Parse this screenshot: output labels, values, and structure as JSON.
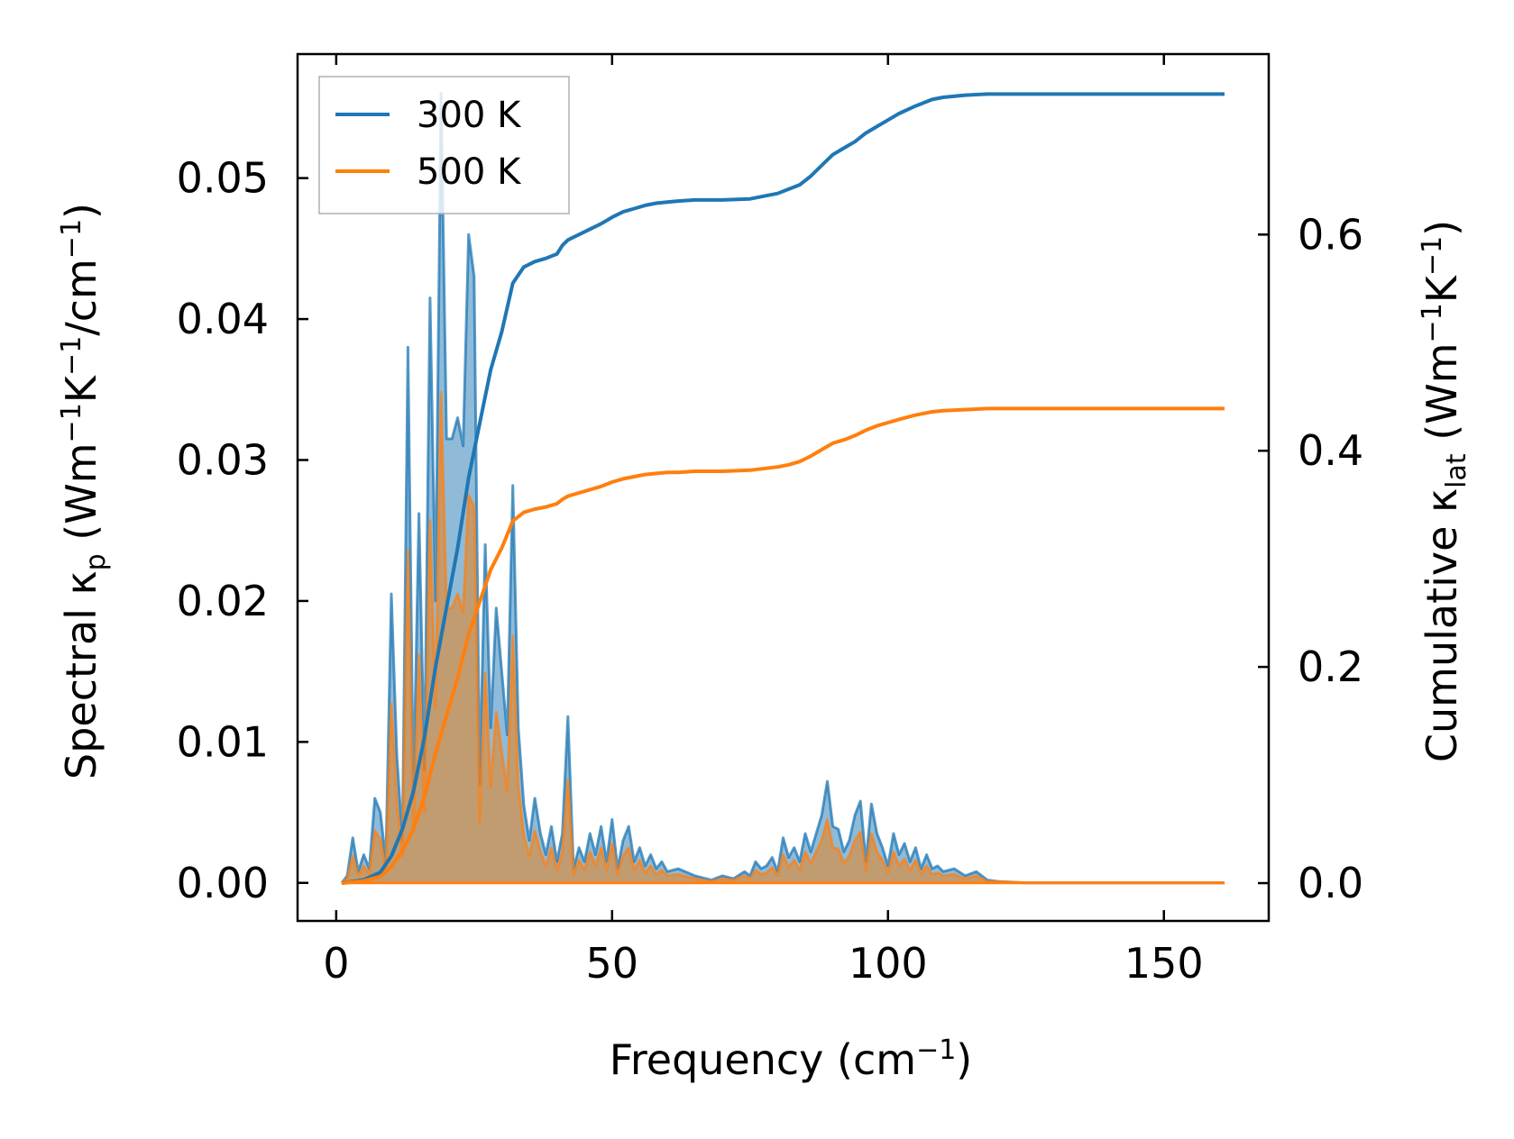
{
  "chart_data": {
    "type": "line",
    "xlabel": "Frequency (cm",
    "xlabel_sup": "−1",
    "xlabel_end": ")",
    "ylabel_left": {
      "parts": [
        {
          "t": "Spectral κ",
          "s": "n"
        },
        {
          "t": "p",
          "s": "sub"
        },
        {
          "t": " (Wm",
          "s": "n"
        },
        {
          "t": "−1",
          "s": "sup"
        },
        {
          "t": "K",
          "s": "n"
        },
        {
          "t": "−1",
          "s": "sup"
        },
        {
          "t": "/cm",
          "s": "n"
        },
        {
          "t": "−1",
          "s": "sup"
        },
        {
          "t": ")",
          "s": "n"
        }
      ]
    },
    "ylabel_right": {
      "parts": [
        {
          "t": "Cumulative κ",
          "s": "n"
        },
        {
          "t": "lat",
          "s": "sub"
        },
        {
          "t": " (Wm",
          "s": "n"
        },
        {
          "t": "−1",
          "s": "sup"
        },
        {
          "t": "K",
          "s": "n"
        },
        {
          "t": "−1",
          "s": "sup"
        },
        {
          "t": ")",
          "s": "n"
        }
      ]
    },
    "xlim": [
      -7,
      169
    ],
    "ylim_left": [
      -0.0027,
      0.0588
    ],
    "ylim_right": [
      -0.035,
      0.767
    ],
    "xticks": [
      0,
      50,
      100,
      150
    ],
    "xtick_labels": [
      "0",
      "50",
      "100",
      "150"
    ],
    "yticks_left": [
      0,
      0.01,
      0.02,
      0.03,
      0.04,
      0.05
    ],
    "ytick_labels_left": [
      "0.00",
      "0.01",
      "0.02",
      "0.03",
      "0.04",
      "0.05"
    ],
    "yticks_right": [
      0,
      0.2,
      0.4,
      0.6
    ],
    "ytick_labels_right": [
      "0.0",
      "0.2",
      "0.4",
      "0.6"
    ],
    "legend_position": "top-left",
    "colors": {
      "s300": "#1f77b4",
      "s500": "#ff7f0e",
      "fill500": "#c49a6c"
    },
    "series": [
      {
        "name": "300 K",
        "spectral_x": [
          1,
          2,
          3,
          4,
          5,
          6,
          7,
          8,
          9,
          10,
          11,
          12,
          13,
          14,
          15,
          16,
          17,
          18,
          19,
          20,
          21,
          22,
          23,
          24,
          25,
          26,
          27,
          28,
          29,
          30,
          31,
          32,
          33,
          34,
          35,
          36,
          37,
          38,
          39,
          40,
          41,
          42,
          43,
          44,
          45,
          46,
          47,
          48,
          49,
          50,
          51,
          52,
          53,
          54,
          55,
          56,
          57,
          58,
          59,
          60,
          62,
          65,
          68,
          70,
          72,
          74,
          75,
          76,
          77,
          78,
          79,
          80,
          81,
          82,
          83,
          84,
          85,
          86,
          87,
          88,
          89,
          90,
          91,
          92,
          93,
          94,
          95,
          96,
          97,
          98,
          99,
          100,
          101,
          102,
          103,
          104,
          105,
          106,
          107,
          108,
          109,
          110,
          112,
          114,
          116,
          118,
          120,
          125,
          130,
          140,
          150,
          161
        ],
        "spectral_y": [
          0.0,
          0.0005,
          0.0032,
          0.0008,
          0.002,
          0.001,
          0.006,
          0.005,
          0.0015,
          0.0205,
          0.009,
          0.003,
          0.038,
          0.006,
          0.0262,
          0.008,
          0.0415,
          0.02,
          0.056,
          0.0315,
          0.0315,
          0.033,
          0.031,
          0.046,
          0.043,
          0.007,
          0.024,
          0.011,
          0.0195,
          0.015,
          0.0105,
          0.0282,
          0.011,
          0.0055,
          0.003,
          0.006,
          0.0035,
          0.002,
          0.004,
          0.0015,
          0.0035,
          0.0118,
          0.001,
          0.0025,
          0.0015,
          0.0035,
          0.002,
          0.004,
          0.0015,
          0.0045,
          0.001,
          0.003,
          0.004,
          0.0015,
          0.0025,
          0.0012,
          0.002,
          0.001,
          0.0015,
          0.0008,
          0.001,
          0.0005,
          0.0002,
          0.0005,
          0.0003,
          0.0008,
          0.0005,
          0.0015,
          0.001,
          0.0012,
          0.0018,
          0.0008,
          0.0032,
          0.0018,
          0.0025,
          0.0015,
          0.0035,
          0.0022,
          0.0035,
          0.0048,
          0.0072,
          0.004,
          0.0038,
          0.0022,
          0.003,
          0.0048,
          0.0058,
          0.0015,
          0.0056,
          0.0035,
          0.0025,
          0.0012,
          0.0035,
          0.002,
          0.0028,
          0.0015,
          0.0025,
          0.001,
          0.002,
          0.001,
          0.0012,
          0.0008,
          0.001,
          0.0005,
          0.0008,
          0.0002,
          0.0001,
          0.0,
          0.0,
          0.0,
          0.0,
          0.0
        ],
        "cumulative_x": [
          1,
          5,
          8,
          10,
          12,
          14,
          16,
          18,
          20,
          22,
          24,
          26,
          28,
          30,
          32,
          34,
          36,
          38,
          40,
          41,
          42,
          44,
          46,
          48,
          50,
          52,
          54,
          56,
          58,
          60,
          62,
          65,
          70,
          75,
          80,
          82,
          84,
          86,
          88,
          90,
          92,
          94,
          96,
          98,
          100,
          102,
          105,
          108,
          110,
          114,
          118,
          125,
          140,
          161
        ],
        "cumulative_y": [
          0.0,
          0.003,
          0.01,
          0.025,
          0.05,
          0.085,
          0.135,
          0.2,
          0.255,
          0.31,
          0.375,
          0.425,
          0.475,
          0.51,
          0.555,
          0.57,
          0.575,
          0.578,
          0.582,
          0.59,
          0.595,
          0.6,
          0.605,
          0.61,
          0.616,
          0.621,
          0.624,
          0.627,
          0.629,
          0.63,
          0.631,
          0.632,
          0.632,
          0.633,
          0.638,
          0.642,
          0.646,
          0.654,
          0.664,
          0.674,
          0.68,
          0.686,
          0.694,
          0.7,
          0.706,
          0.712,
          0.719,
          0.725,
          0.727,
          0.729,
          0.73,
          0.73,
          0.73,
          0.73
        ]
      },
      {
        "name": "500 K",
        "spectral_x": [
          1,
          2,
          3,
          4,
          5,
          6,
          7,
          8,
          9,
          10,
          11,
          12,
          13,
          14,
          15,
          16,
          17,
          18,
          19,
          20,
          21,
          22,
          23,
          24,
          25,
          26,
          27,
          28,
          29,
          30,
          31,
          32,
          33,
          34,
          35,
          36,
          37,
          38,
          39,
          40,
          41,
          42,
          43,
          44,
          45,
          46,
          47,
          48,
          49,
          50,
          51,
          52,
          53,
          54,
          55,
          56,
          57,
          58,
          59,
          60,
          62,
          65,
          68,
          70,
          72,
          74,
          75,
          76,
          77,
          78,
          79,
          80,
          81,
          82,
          83,
          84,
          85,
          86,
          87,
          88,
          89,
          90,
          91,
          92,
          93,
          94,
          95,
          96,
          97,
          98,
          99,
          100,
          101,
          102,
          103,
          104,
          105,
          106,
          107,
          108,
          109,
          110,
          112,
          114,
          116,
          118,
          120,
          125,
          130,
          140,
          150,
          161
        ],
        "spectral_y": [
          0.0,
          0.0003,
          0.0019,
          0.0005,
          0.0012,
          0.0006,
          0.0037,
          0.0031,
          0.0009,
          0.0127,
          0.0056,
          0.0019,
          0.0236,
          0.0037,
          0.0162,
          0.005,
          0.0257,
          0.0124,
          0.0348,
          0.0195,
          0.0195,
          0.0205,
          0.0192,
          0.0275,
          0.0267,
          0.0043,
          0.0149,
          0.0068,
          0.0121,
          0.0093,
          0.0065,
          0.0175,
          0.0068,
          0.0034,
          0.0019,
          0.0037,
          0.0022,
          0.0012,
          0.0025,
          0.0009,
          0.0022,
          0.0073,
          0.0006,
          0.0016,
          0.0009,
          0.0022,
          0.0012,
          0.0025,
          0.0009,
          0.0028,
          0.0006,
          0.0019,
          0.0025,
          0.0009,
          0.0016,
          0.0007,
          0.0012,
          0.0006,
          0.0009,
          0.0005,
          0.0006,
          0.0003,
          0.0001,
          0.0003,
          0.0002,
          0.0005,
          0.0003,
          0.0009,
          0.0006,
          0.0007,
          0.0011,
          0.0005,
          0.002,
          0.0011,
          0.0016,
          0.0009,
          0.0022,
          0.0014,
          0.0022,
          0.003,
          0.0045,
          0.0025,
          0.0024,
          0.0014,
          0.0019,
          0.003,
          0.0036,
          0.0009,
          0.0035,
          0.0022,
          0.0016,
          0.0007,
          0.0022,
          0.0012,
          0.0017,
          0.0009,
          0.0016,
          0.0006,
          0.0012,
          0.0006,
          0.0007,
          0.0005,
          0.0006,
          0.0003,
          0.0005,
          0.0001,
          0.0001,
          0.0,
          0.0,
          0.0,
          0.0,
          0.0
        ],
        "cumulative_x": [
          1,
          5,
          8,
          10,
          12,
          14,
          16,
          18,
          20,
          22,
          24,
          26,
          28,
          30,
          32,
          34,
          36,
          38,
          40,
          41,
          42,
          44,
          46,
          48,
          50,
          52,
          54,
          56,
          58,
          60,
          62,
          65,
          70,
          75,
          80,
          82,
          84,
          86,
          88,
          90,
          92,
          94,
          96,
          98,
          100,
          102,
          105,
          108,
          110,
          114,
          118,
          125,
          140,
          161
        ],
        "cumulative_y": [
          0.0,
          0.002,
          0.006,
          0.015,
          0.03,
          0.05,
          0.08,
          0.12,
          0.155,
          0.19,
          0.23,
          0.26,
          0.29,
          0.31,
          0.335,
          0.343,
          0.346,
          0.348,
          0.351,
          0.355,
          0.358,
          0.361,
          0.364,
          0.367,
          0.371,
          0.374,
          0.376,
          0.378,
          0.379,
          0.38,
          0.38,
          0.381,
          0.381,
          0.382,
          0.385,
          0.387,
          0.39,
          0.395,
          0.401,
          0.407,
          0.41,
          0.414,
          0.419,
          0.423,
          0.426,
          0.429,
          0.433,
          0.436,
          0.437,
          0.438,
          0.439,
          0.439,
          0.439,
          0.439
        ]
      }
    ]
  }
}
